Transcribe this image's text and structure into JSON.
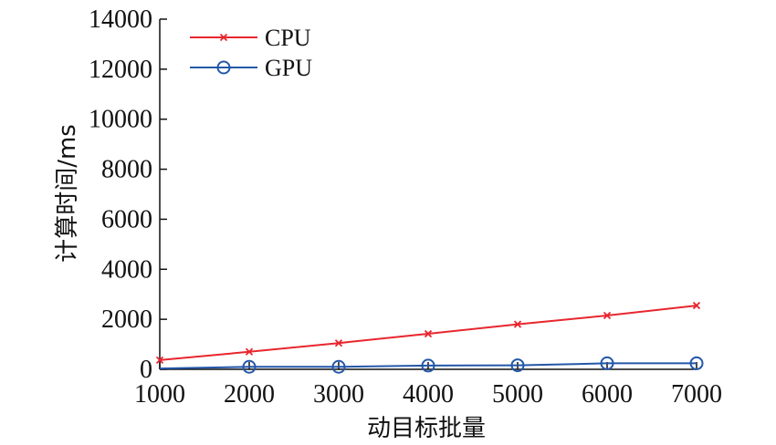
{
  "chart_data": {
    "type": "line",
    "title": "",
    "xlabel": "动目标批量",
    "ylabel": "计算时间/ms",
    "x": [
      1000,
      2000,
      3000,
      4000,
      5000,
      6000,
      7000
    ],
    "x_ticks": [
      "1000",
      "2000",
      "3000",
      "4000",
      "5000",
      "6000",
      "7000"
    ],
    "y_ticks": [
      "0",
      "2000",
      "4000",
      "6000",
      "8000",
      "10000",
      "12000",
      "14000"
    ],
    "xlim": [
      1000,
      7000
    ],
    "ylim": [
      0,
      14000
    ],
    "grid": false,
    "legend_position": "top-left",
    "series": [
      {
        "name": "CPU",
        "color": "#e8262e",
        "marker": "x",
        "x": [
          1000,
          2000,
          3000,
          4000,
          5000,
          6000,
          7000
        ],
        "values": [
          370,
          700,
          1050,
          1420,
          1800,
          2150,
          2550
        ]
      },
      {
        "name": "GPU",
        "color": "#2357a8",
        "marker": "circle",
        "x": [
          1000,
          2000,
          3000,
          4000,
          5000,
          6000,
          7000
        ],
        "values": [
          30,
          100,
          100,
          150,
          160,
          240,
          240
        ]
      }
    ]
  }
}
